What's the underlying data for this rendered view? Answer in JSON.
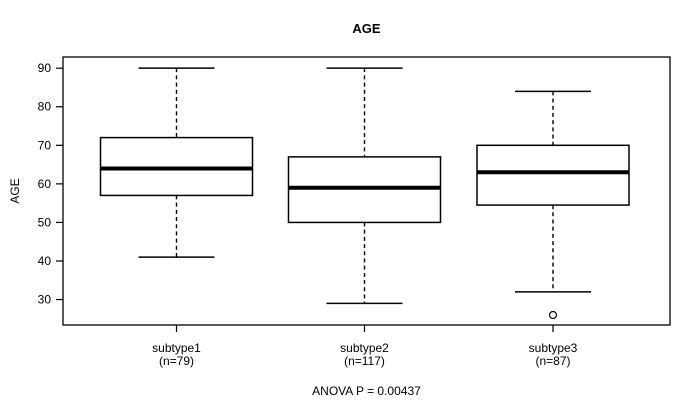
{
  "chart_data": {
    "type": "boxplot",
    "title": "AGE",
    "ylabel": "AGE",
    "xlabel": "",
    "annotation": "ANOVA P = 0.00437",
    "yticks": [
      30,
      40,
      50,
      60,
      70,
      80,
      90
    ],
    "ylim": [
      23.4,
      92.9
    ],
    "grid": false,
    "colors": {
      "foreground": "#000000",
      "background": "#ffffff"
    },
    "groups": [
      {
        "label": "subtype1",
        "sublabel": "(n=79)",
        "whisker_low": 41,
        "q1": 57,
        "median": 64,
        "q3": 72,
        "whisker_high": 90,
        "outliers": []
      },
      {
        "label": "subtype2",
        "sublabel": "(n=117)",
        "whisker_low": 29,
        "q1": 50,
        "median": 59,
        "q3": 67,
        "whisker_high": 90,
        "outliers": []
      },
      {
        "label": "subtype3",
        "sublabel": "(n=87)",
        "whisker_low": 32,
        "q1": 54.5,
        "median": 63,
        "q3": 70,
        "whisker_high": 84,
        "outliers": [
          26
        ]
      }
    ]
  }
}
